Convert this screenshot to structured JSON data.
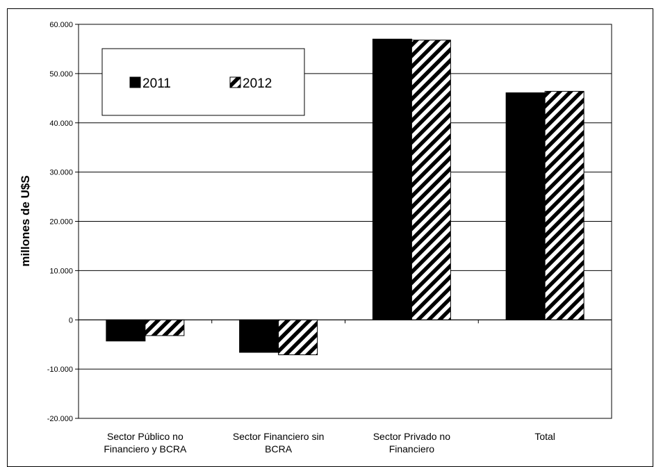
{
  "chart_data": {
    "type": "bar",
    "title": "",
    "xlabel": "",
    "ylabel": "millones de U$S",
    "ylim": [
      -20000,
      60000
    ],
    "yticks": [
      -20000,
      -10000,
      0,
      10000,
      20000,
      30000,
      40000,
      50000,
      60000
    ],
    "ytick_labels": [
      "-20.000",
      "-10.000",
      "0",
      "10.000",
      "20.000",
      "30.000",
      "40.000",
      "50.000",
      "60.000"
    ],
    "grid": true,
    "legend_position": "top-left",
    "categories": [
      [
        "Sector Público no",
        "Financiero y BCRA"
      ],
      [
        "Sector Financiero sin",
        "BCRA"
      ],
      [
        "Sector Privado no",
        "Financiero"
      ],
      [
        "Total"
      ]
    ],
    "series": [
      {
        "name": "2011",
        "values": [
          -4300,
          -6600,
          57000,
          46100
        ],
        "color": "#000000",
        "pattern": "solid"
      },
      {
        "name": "2012",
        "values": [
          -3200,
          -7100,
          56800,
          46400
        ],
        "color": "#000000",
        "pattern": "diagonal-hatch"
      }
    ]
  }
}
